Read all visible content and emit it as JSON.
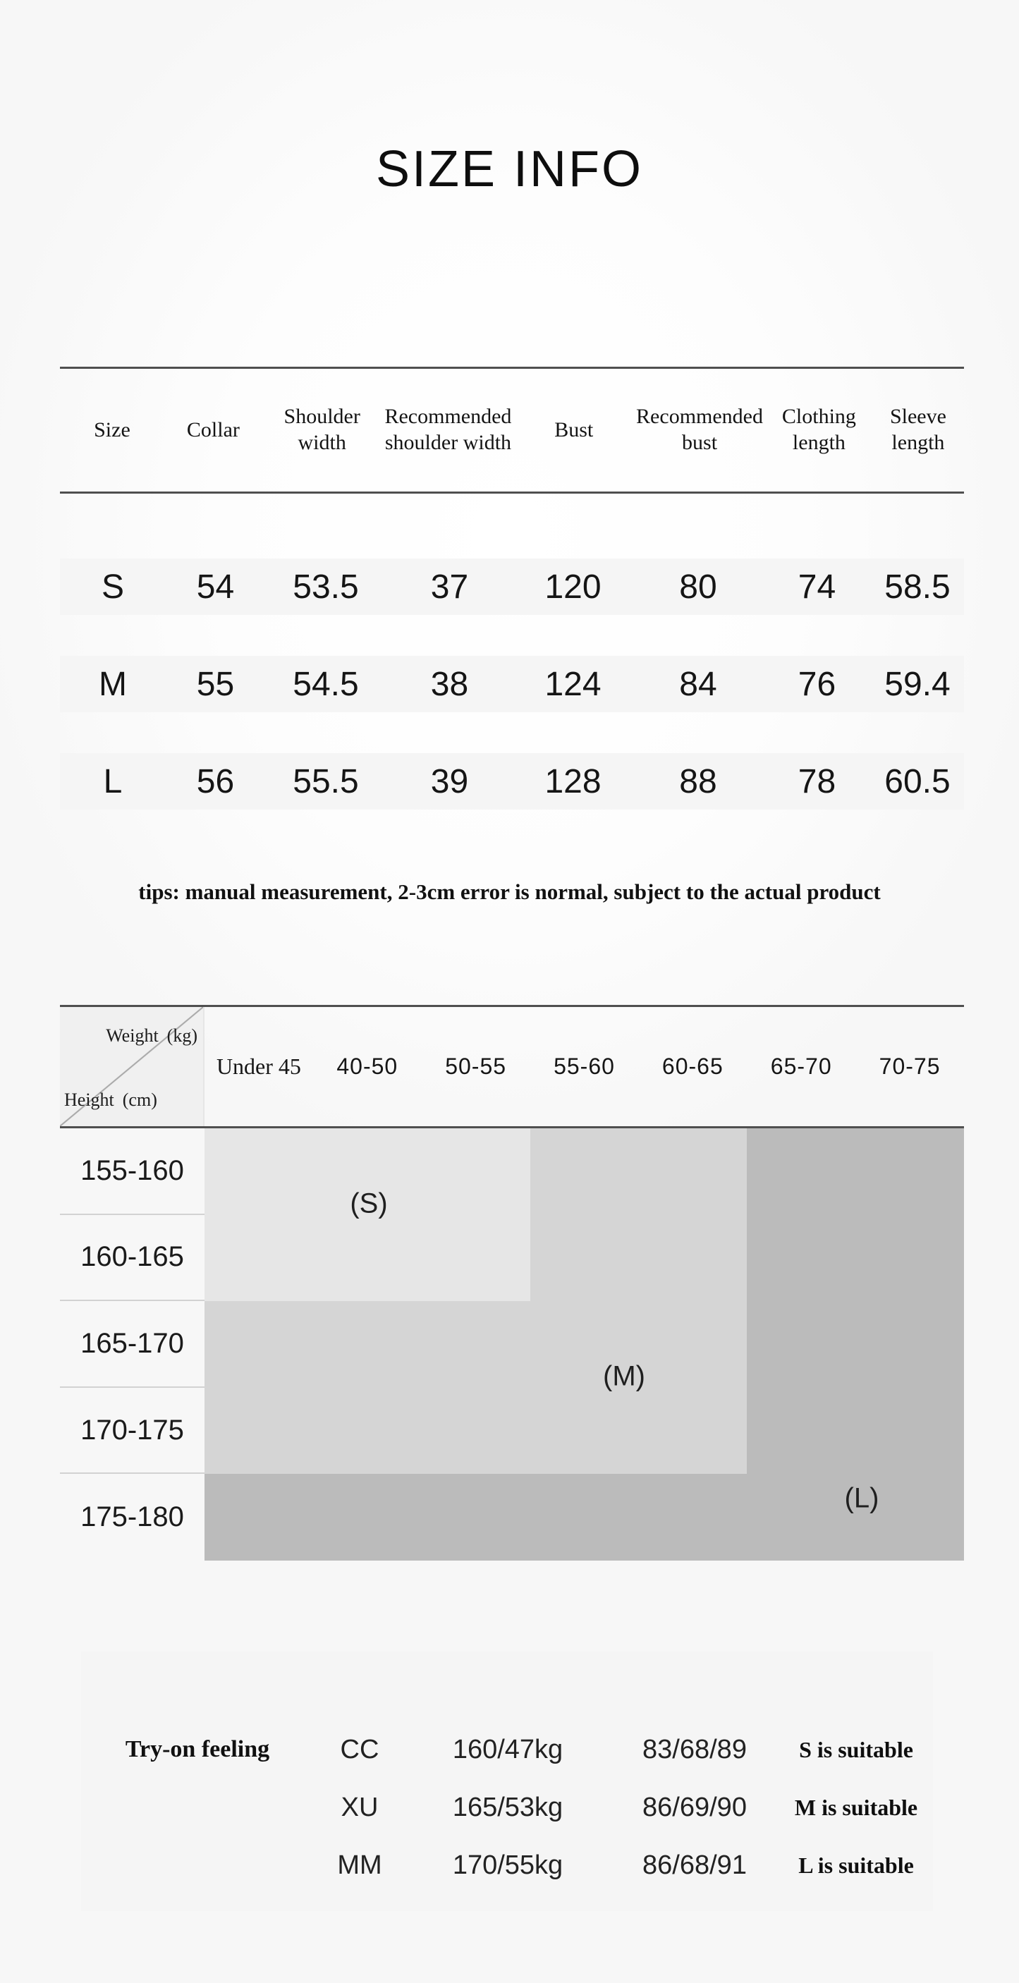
{
  "page": {
    "title": "SIZE INFO"
  },
  "size_table": {
    "columns": [
      "Size",
      "Collar",
      "Shoulder width",
      "Recommended shoulder width",
      "Bust",
      "Recommended bust",
      "Clothing length",
      "Sleeve length"
    ],
    "rows": [
      [
        "S",
        "54",
        "53.5",
        "37",
        "120",
        "80",
        "74",
        "58.5"
      ],
      [
        "M",
        "55",
        "54.5",
        "38",
        "124",
        "84",
        "76",
        "59.4"
      ],
      [
        "L",
        "56",
        "55.5",
        "39",
        "128",
        "88",
        "78",
        "60.5"
      ]
    ],
    "tip": "tips: manual measurement, 2-3cm error is normal, subject to the actual product"
  },
  "fit_matrix": {
    "corner": {
      "weight_label": "Weight",
      "weight_unit": "(kg)",
      "height_label": "Height",
      "height_unit": "(cm)"
    },
    "weight_columns": [
      "Under 45",
      "40-50",
      "50-55",
      "55-60",
      "60-65",
      "65-70",
      "70-75"
    ],
    "height_rows": [
      "155-160",
      "160-165",
      "165-170",
      "170-175",
      "175-180"
    ],
    "zones": [
      {
        "label": "(S)",
        "size": "S",
        "color": "#e6e6e6",
        "weight_span": [
          "Under 45",
          "50-55"
        ],
        "height_span": [
          "155-160",
          "160-165"
        ]
      },
      {
        "label": "(M)",
        "size": "M",
        "color": "#d5d5d5",
        "weight_span": [
          "Under 45",
          "60-65"
        ],
        "height_span": [
          "155-160",
          "170-175"
        ]
      },
      {
        "label": "(L)",
        "size": "L",
        "color": "#bbbbbb",
        "weight_span": [
          "Under 45",
          "70-75"
        ],
        "height_span": [
          "155-160",
          "175-180"
        ]
      }
    ]
  },
  "try_on": {
    "heading": "Try-on feeling",
    "rows": [
      {
        "name": "CC",
        "height_weight": "160/47kg",
        "measurements": "83/68/89",
        "verdict": "S is suitable"
      },
      {
        "name": "XU",
        "height_weight": "165/53kg",
        "measurements": "86/69/90",
        "verdict": "M is suitable"
      },
      {
        "name": "MM",
        "height_weight": "170/55kg",
        "measurements": "86/68/91",
        "verdict": "L is suitable"
      }
    ]
  },
  "colors": {
    "zone_s": "#e6e6e6",
    "zone_m": "#d5d5d5",
    "zone_l": "#bbbbbb",
    "table_band": "#f5f5f5",
    "panel_bg": "#f5f5f5",
    "rule_dark": "#4f4f4f"
  }
}
